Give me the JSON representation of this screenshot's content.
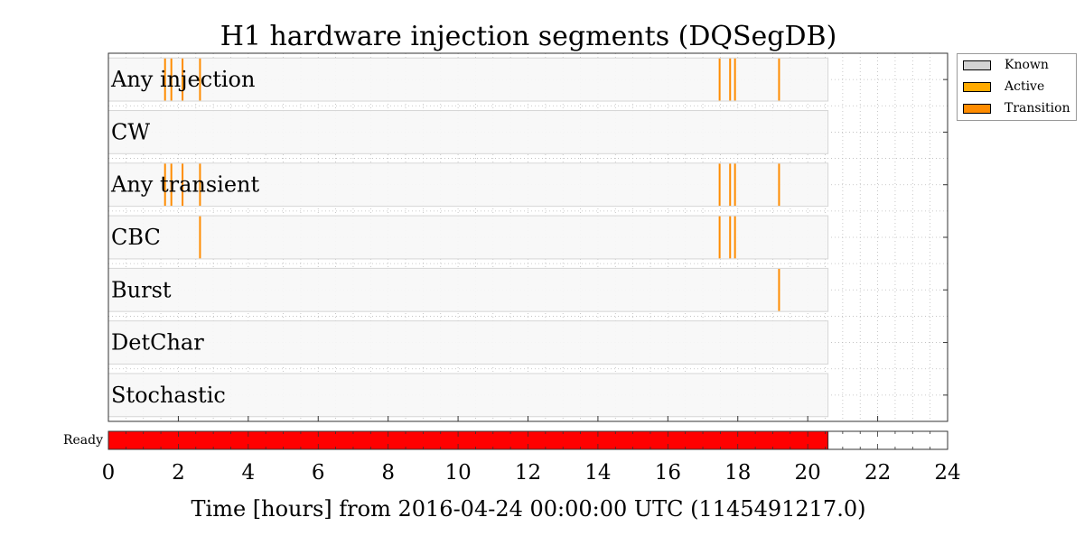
{
  "chart_data": {
    "type": "segments",
    "title": "H1 hardware injection segments (DQSegDB)",
    "xlabel": "Time [hours] from 2016-04-24 00:00:00 UTC (1145491217.0)",
    "xlim": [
      0,
      24
    ],
    "xticks": [
      0,
      2,
      4,
      6,
      8,
      10,
      12,
      14,
      16,
      18,
      20,
      22,
      24
    ],
    "grid": true,
    "legend_position": "outside-top-right",
    "legend": [
      {
        "label": "Known",
        "color": "#d3d3d3"
      },
      {
        "label": "Active",
        "color": "#ffaa00"
      },
      {
        "label": "Transition",
        "color": "#ff8c00"
      }
    ],
    "known_span": [
      0,
      20.58
    ],
    "rows": [
      {
        "label": "Any injection",
        "active_times": [
          1.62,
          1.8,
          2.12,
          2.62,
          17.48,
          17.78,
          17.92,
          19.18
        ]
      },
      {
        "label": "CW",
        "active_times": []
      },
      {
        "label": "Any transient",
        "active_times": [
          1.62,
          1.8,
          2.12,
          2.62,
          17.48,
          17.78,
          17.92,
          19.18
        ]
      },
      {
        "label": "CBC",
        "active_times": [
          2.62,
          17.48,
          17.78,
          17.92
        ]
      },
      {
        "label": "Burst",
        "active_times": [
          19.18
        ]
      },
      {
        "label": "DetChar",
        "active_times": []
      },
      {
        "label": "Stochastic",
        "active_times": []
      }
    ],
    "state": {
      "label": "Ready",
      "span": [
        0,
        20.58
      ],
      "color": "#ff0000"
    }
  }
}
